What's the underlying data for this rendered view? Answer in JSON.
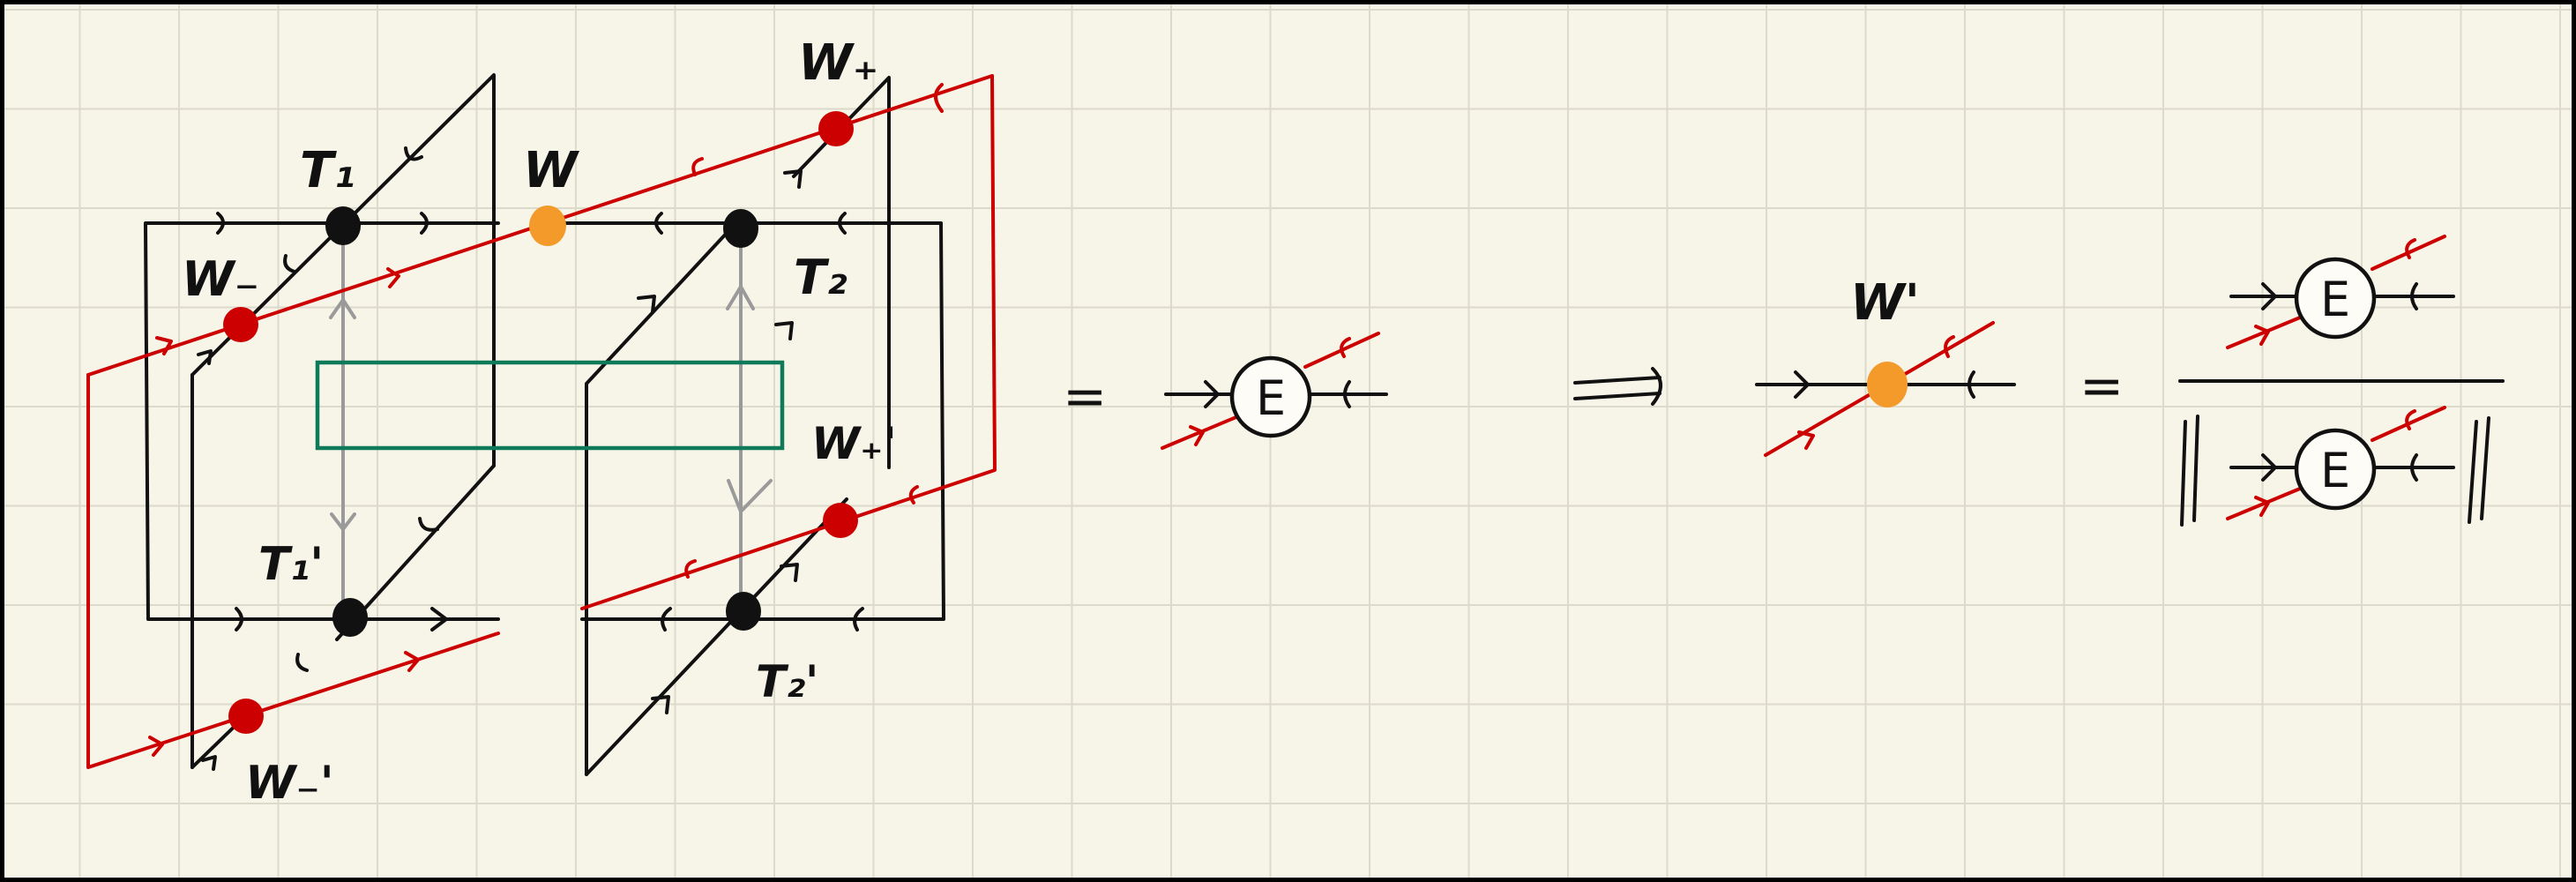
{
  "diagram": {
    "labels": {
      "T1": "T₁",
      "T2": "T₂",
      "T1p": "T₁'",
      "T2p": "T₂'",
      "W": "W",
      "Wminus": "W₋",
      "Wplus": "W₊",
      "Wminus_p": "W₋'",
      "Wplus_p": "W₊'",
      "Wprime": "W'"
    },
    "node_E": "E",
    "equals": "=",
    "implies": "⟹",
    "norm_bars": "‖",
    "colors": {
      "ink": "#111111",
      "wire_red": "#cc0000",
      "orange_node": "#f39a2b",
      "grey_arrow": "#9a9a9a",
      "green_box": "#0e7a5a",
      "paper": "#f7f4e8"
    }
  }
}
